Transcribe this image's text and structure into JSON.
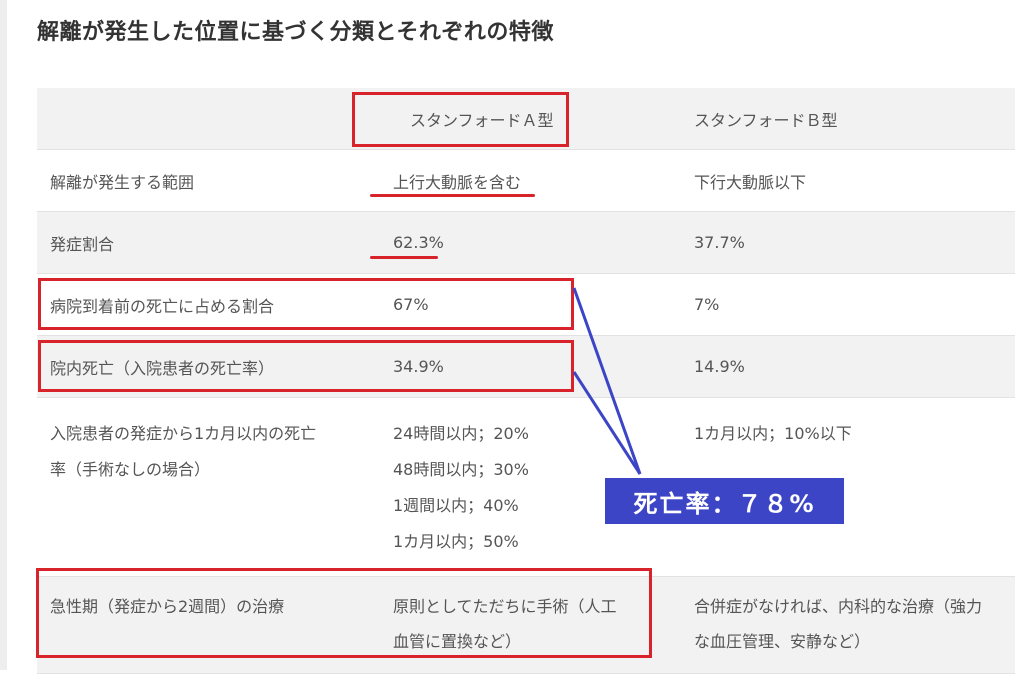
{
  "title": "解離が発生した位置に基づく分類とそれぞれの特徴",
  "table": {
    "header": {
      "blank": "",
      "col_a": "スタンフォードＡ型",
      "col_b": "スタンフォードＢ型"
    },
    "rows": [
      {
        "label": "解離が発生する範囲",
        "a": [
          "上行大動脈を含む"
        ],
        "b": [
          "下行大動脈以下"
        ]
      },
      {
        "label": "発症割合",
        "a": [
          "62.3%"
        ],
        "b": [
          "37.7%"
        ]
      },
      {
        "label": "病院到着前の死亡に占める割合",
        "a": [
          "67%"
        ],
        "b": [
          "7%"
        ]
      },
      {
        "label": "院内死亡（入院患者の死亡率）",
        "a": [
          "34.9%"
        ],
        "b": [
          "14.9%"
        ]
      },
      {
        "label": [
          "入院患者の発症から1カ月以内の死亡",
          "率（手術なしの場合）"
        ],
        "a": [
          "24時間以内；20%",
          "48時間以内；30%",
          "1週間以内；40%",
          "1カ月以内；50%"
        ],
        "b": [
          "1カ月以内；10%以下"
        ]
      },
      {
        "label": [
          "急性期（発症から2週間）の治療"
        ],
        "a": [
          "原則としてただちに手術（人工",
          "血管に置換など）"
        ],
        "b": [
          "合併症がなければ、内科的な治療（強力",
          "な血圧管理、安静など）"
        ]
      }
    ]
  },
  "callout": {
    "text": "死亡率：７８%"
  },
  "colors": {
    "highlight_red": "#d9232b",
    "callout_blue": "#3d45c7"
  }
}
